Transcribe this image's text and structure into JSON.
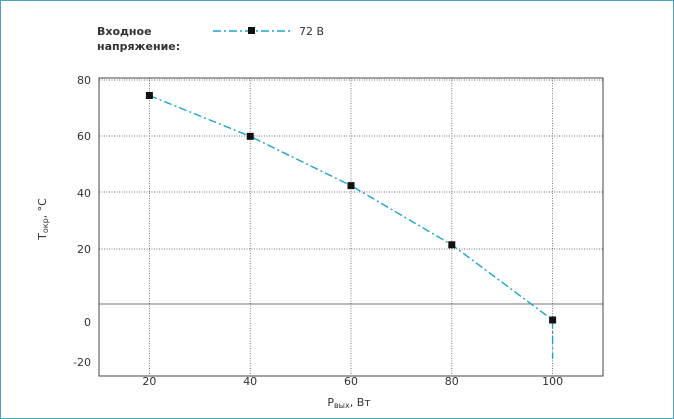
{
  "legend": {
    "title_line1": "Входное",
    "title_line2": "напряжение:"
  },
  "axes": {
    "ylabel_main": "T",
    "ylabel_sub": "окр",
    "ylabel_unit": ", °C",
    "xlabel_main": "P",
    "xlabel_sub": "вых",
    "xlabel_unit": ", Вт"
  },
  "colors": {
    "series": "#1aa3cc",
    "marker": "#111111",
    "grid": "#444444",
    "frame": "#4aa3c7"
  },
  "chart_data": {
    "type": "line",
    "title": "",
    "xlabel": "Pвых, Вт",
    "ylabel": "Tокр, °C",
    "xlim": [
      10,
      110
    ],
    "y_ticks": [
      "80",
      "60",
      "40",
      "20",
      "0",
      "-20"
    ],
    "x_ticks": [
      "20",
      "40",
      "60",
      "80",
      "100"
    ],
    "grid": true,
    "legend_position": "top",
    "series": [
      {
        "name": "72 В",
        "x": [
          20,
          40,
          60,
          80,
          100
        ],
        "y": [
          74.5,
          60,
          42.5,
          21.5,
          -2
        ],
        "drop_to": -20
      }
    ]
  }
}
